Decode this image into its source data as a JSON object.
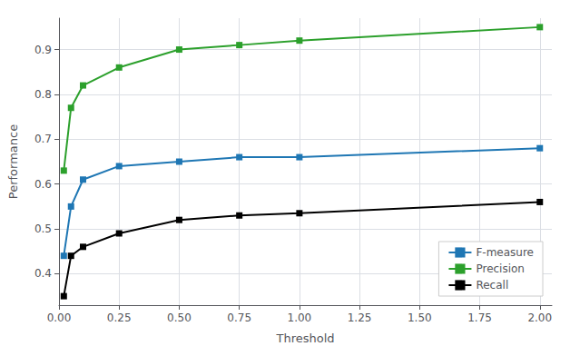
{
  "chart_data": {
    "type": "line",
    "xlabel": "Threshold",
    "ylabel": "Performance",
    "x": [
      0.02,
      0.05,
      0.1,
      0.25,
      0.5,
      0.75,
      1.0,
      2.0
    ],
    "series": [
      {
        "name": "F-measure",
        "color": "#1f77b4",
        "values": [
          0.44,
          0.55,
          0.61,
          0.64,
          0.65,
          0.66,
          0.66,
          0.68
        ]
      },
      {
        "name": "Precision",
        "color": "#2ca02c",
        "values": [
          0.63,
          0.77,
          0.82,
          0.86,
          0.9,
          0.91,
          0.92,
          0.95
        ]
      },
      {
        "name": "Recall",
        "color": "#000000",
        "values": [
          0.35,
          0.44,
          0.46,
          0.49,
          0.52,
          0.53,
          0.535,
          0.56
        ]
      }
    ],
    "xlim": [
      0.0,
      2.05
    ],
    "ylim": [
      0.33,
      0.97
    ],
    "xticks": [
      {
        "value": 0.0,
        "label": "0.00"
      },
      0.25,
      {
        "value": 0.5,
        "label": "0.50"
      },
      0.75,
      {
        "value": 1.0,
        "label": "1.00"
      },
      1.25,
      {
        "value": 1.5,
        "label": "1.50"
      },
      1.75,
      {
        "value": 2.0,
        "label": "2.00"
      }
    ],
    "yticks": [
      0.4,
      0.5,
      0.6,
      0.7,
      0.8,
      0.9
    ],
    "grid": true,
    "legend": "lower right",
    "marker": "square"
  }
}
